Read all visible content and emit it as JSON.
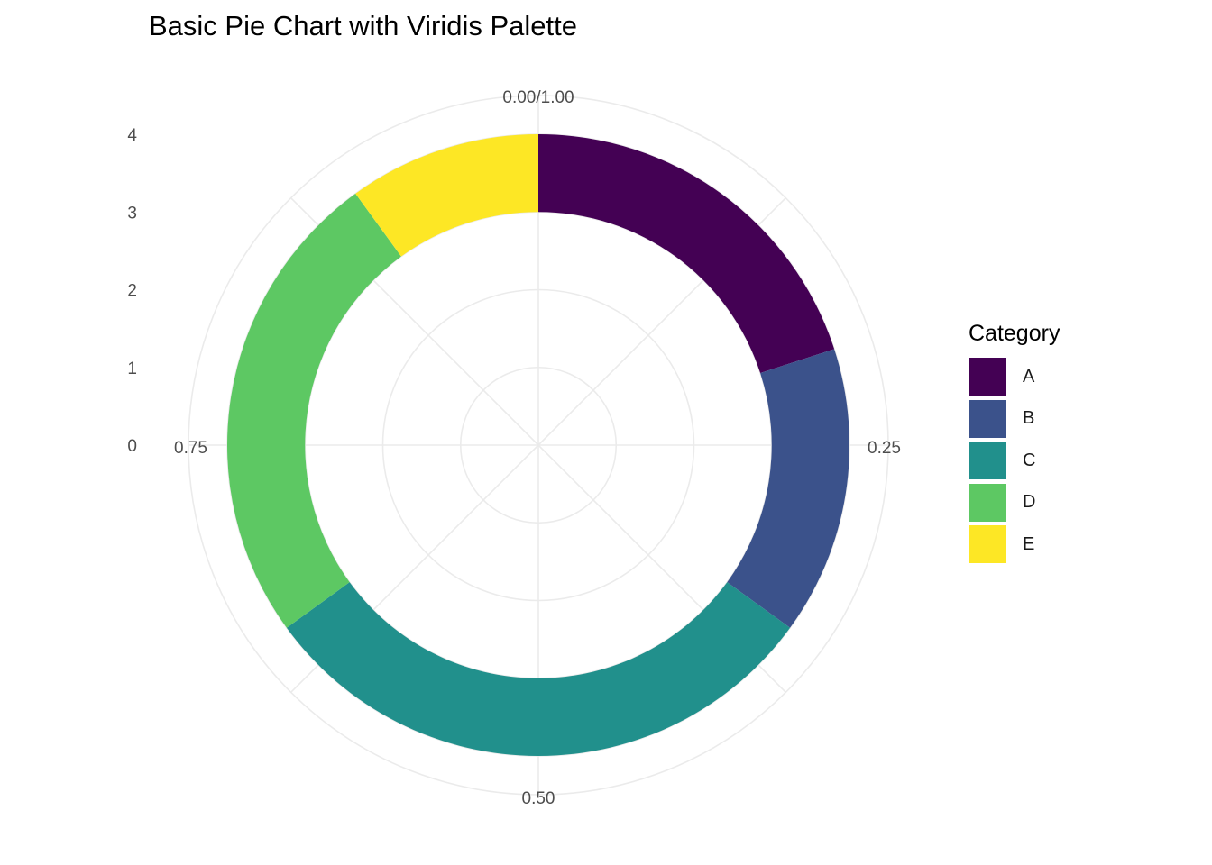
{
  "chart_data": {
    "type": "pie",
    "title": "Basic Pie Chart with Viridis Palette",
    "legend_title": "Category",
    "legend_position": "right",
    "categories": [
      "A",
      "B",
      "C",
      "D",
      "E"
    ],
    "values": [
      0.2,
      0.15,
      0.3,
      0.25,
      0.1
    ],
    "colors": [
      "#440154",
      "#3B528B",
      "#21908C",
      "#5DC863",
      "#FDE725"
    ],
    "theta_ticks": [
      "0.00/1.00",
      "0.25",
      "0.50",
      "0.75"
    ],
    "r_ticks": [
      "0",
      "1",
      "2",
      "3",
      "4"
    ],
    "grid": true
  }
}
